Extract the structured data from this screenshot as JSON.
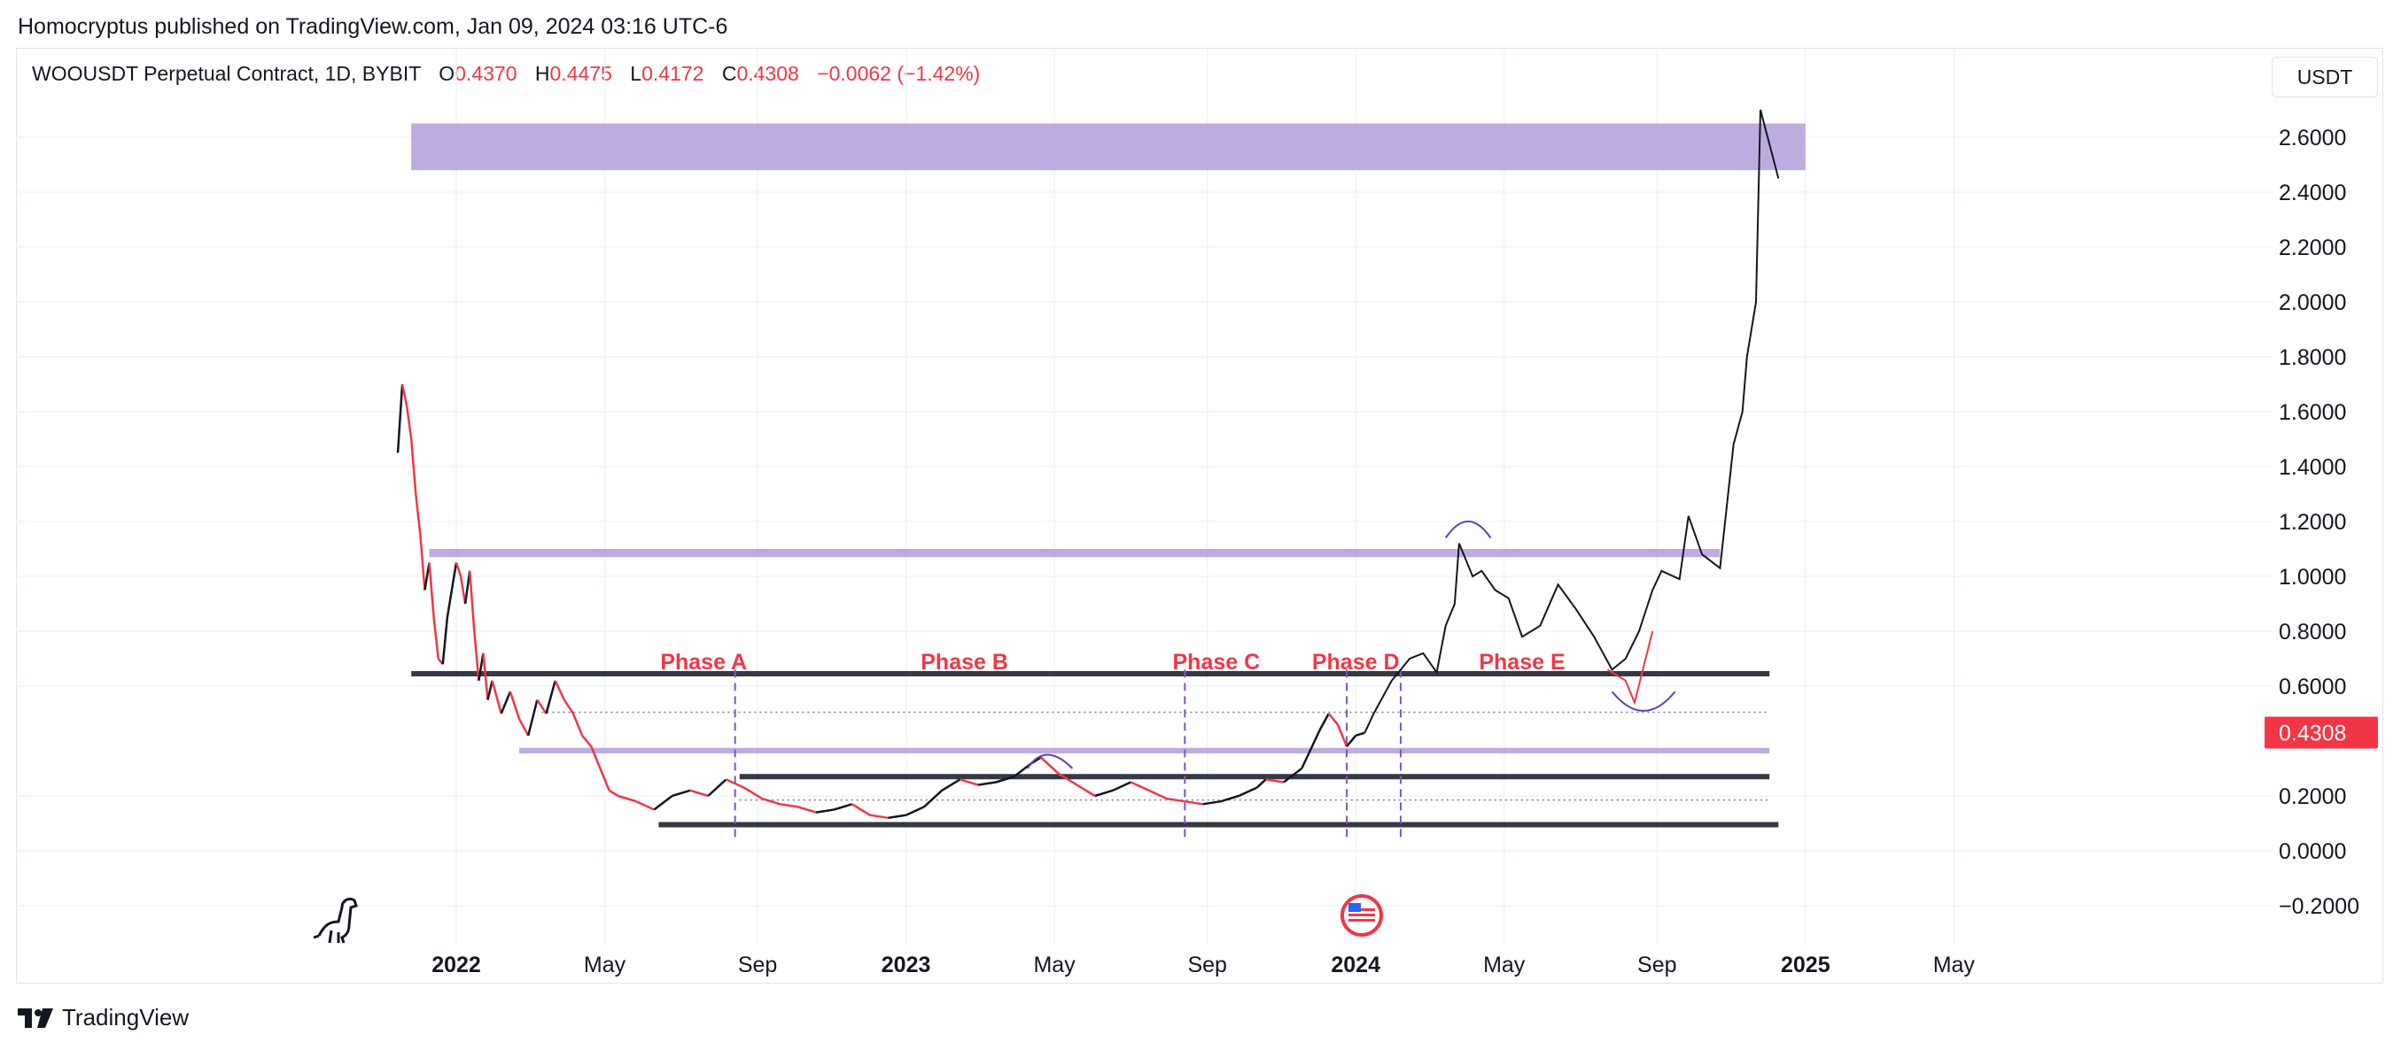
{
  "header": {
    "publish_line": "Homocryptus published on TradingView.com, Jan 09, 2024 03:16 UTC-6"
  },
  "legend": {
    "symbol": "WOOUSDT Perpetual Contract, 1D, BYBIT",
    "open_label": "O",
    "open": "0.4370",
    "high_label": "H",
    "high": "0.4475",
    "low_label": "L",
    "low": "0.4172",
    "close_label": "C",
    "close": "0.4308",
    "change": "−0.0062 (−1.42%)"
  },
  "currency": "USDT",
  "footer": {
    "brand": "TradingView"
  },
  "colors": {
    "down": "#f23645",
    "zone": "#b39ddb",
    "line": "#131722",
    "phase_text": "#f23645",
    "divider": "#7e57c2"
  },
  "chart_data": {
    "type": "line",
    "title": "WOOUSDT Perpetual Contract, 1D, BYBIT",
    "y_ticks": [
      "2.6000",
      "2.4000",
      "2.2000",
      "2.0000",
      "1.8000",
      "1.6000",
      "1.4000",
      "1.2000",
      "1.0000",
      "0.8000",
      "0.6000",
      "0.2000",
      "0.0000",
      "−0.2000"
    ],
    "y_tick_values": [
      2.6,
      2.4,
      2.2,
      2.0,
      1.8,
      1.6,
      1.4,
      1.2,
      1.0,
      0.8,
      0.6,
      0.2,
      0.0,
      -0.2
    ],
    "ylim": [
      -0.36,
      2.95
    ],
    "x_ticks": [
      {
        "label": "2022",
        "t": 2022.0,
        "bold": true
      },
      {
        "label": "May",
        "t": 2022.33,
        "bold": false
      },
      {
        "label": "Sep",
        "t": 2022.67,
        "bold": false
      },
      {
        "label": "2023",
        "t": 2023.0,
        "bold": true
      },
      {
        "label": "May",
        "t": 2023.33,
        "bold": false
      },
      {
        "label": "Sep",
        "t": 2023.67,
        "bold": false
      },
      {
        "label": "2024",
        "t": 2024.0,
        "bold": true
      },
      {
        "label": "May",
        "t": 2024.33,
        "bold": false
      },
      {
        "label": "Sep",
        "t": 2024.67,
        "bold": false
      },
      {
        "label": "2025",
        "t": 2025.0,
        "bold": true
      },
      {
        "label": "May",
        "t": 2025.33,
        "bold": false
      }
    ],
    "xlim": [
      2021.08,
      2026.0
    ],
    "last_price_label": "0.4308",
    "last_price": 0.4308,
    "price_series": [
      [
        2021.87,
        1.45
      ],
      [
        2021.88,
        1.7
      ],
      [
        2021.89,
        1.62
      ],
      [
        2021.9,
        1.5
      ],
      [
        2021.91,
        1.3
      ],
      [
        2021.92,
        1.15
      ],
      [
        2021.93,
        0.95
      ],
      [
        2021.94,
        1.05
      ],
      [
        2021.95,
        0.85
      ],
      [
        2021.96,
        0.7
      ],
      [
        2021.97,
        0.68
      ],
      [
        2021.98,
        0.85
      ],
      [
        2021.99,
        0.95
      ],
      [
        2022.0,
        1.05
      ],
      [
        2022.01,
        1.0
      ],
      [
        2022.02,
        0.9
      ],
      [
        2022.03,
        1.02
      ],
      [
        2022.04,
        0.8
      ],
      [
        2022.05,
        0.62
      ],
      [
        2022.06,
        0.72
      ],
      [
        2022.07,
        0.55
      ],
      [
        2022.08,
        0.62
      ],
      [
        2022.1,
        0.5
      ],
      [
        2022.12,
        0.58
      ],
      [
        2022.14,
        0.48
      ],
      [
        2022.16,
        0.42
      ],
      [
        2022.18,
        0.55
      ],
      [
        2022.2,
        0.5
      ],
      [
        2022.22,
        0.62
      ],
      [
        2022.24,
        0.55
      ],
      [
        2022.26,
        0.5
      ],
      [
        2022.28,
        0.42
      ],
      [
        2022.3,
        0.38
      ],
      [
        2022.32,
        0.3
      ],
      [
        2022.34,
        0.22
      ],
      [
        2022.36,
        0.2
      ],
      [
        2022.4,
        0.18
      ],
      [
        2022.44,
        0.15
      ],
      [
        2022.48,
        0.2
      ],
      [
        2022.52,
        0.22
      ],
      [
        2022.56,
        0.2
      ],
      [
        2022.6,
        0.26
      ],
      [
        2022.64,
        0.23
      ],
      [
        2022.68,
        0.19
      ],
      [
        2022.72,
        0.17
      ],
      [
        2022.76,
        0.16
      ],
      [
        2022.8,
        0.14
      ],
      [
        2022.84,
        0.15
      ],
      [
        2022.88,
        0.17
      ],
      [
        2022.92,
        0.13
      ],
      [
        2022.96,
        0.12
      ],
      [
        2023.0,
        0.13
      ],
      [
        2023.04,
        0.16
      ],
      [
        2023.08,
        0.22
      ],
      [
        2023.12,
        0.26
      ],
      [
        2023.16,
        0.24
      ],
      [
        2023.2,
        0.25
      ],
      [
        2023.24,
        0.27
      ],
      [
        2023.28,
        0.32
      ],
      [
        2023.3,
        0.34
      ],
      [
        2023.34,
        0.28
      ],
      [
        2023.38,
        0.24
      ],
      [
        2023.42,
        0.2
      ],
      [
        2023.46,
        0.22
      ],
      [
        2023.5,
        0.25
      ],
      [
        2023.54,
        0.22
      ],
      [
        2023.58,
        0.19
      ],
      [
        2023.62,
        0.18
      ],
      [
        2023.66,
        0.17
      ],
      [
        2023.7,
        0.18
      ],
      [
        2023.74,
        0.2
      ],
      [
        2023.78,
        0.23
      ],
      [
        2023.8,
        0.26
      ],
      [
        2023.84,
        0.25
      ],
      [
        2023.88,
        0.3
      ],
      [
        2023.92,
        0.44
      ],
      [
        2023.94,
        0.5
      ],
      [
        2023.96,
        0.46
      ],
      [
        2023.98,
        0.38
      ],
      [
        2024.0,
        0.42
      ],
      [
        2024.02,
        0.43
      ]
    ],
    "projection_series": [
      [
        2024.04,
        0.5
      ],
      [
        2024.08,
        0.62
      ],
      [
        2024.12,
        0.7
      ],
      [
        2024.15,
        0.72
      ],
      [
        2024.18,
        0.65
      ],
      [
        2024.2,
        0.82
      ],
      [
        2024.22,
        0.9
      ],
      [
        2024.23,
        1.12
      ],
      [
        2024.26,
        1.0
      ],
      [
        2024.28,
        1.02
      ],
      [
        2024.31,
        0.95
      ],
      [
        2024.34,
        0.92
      ],
      [
        2024.37,
        0.78
      ],
      [
        2024.41,
        0.82
      ],
      [
        2024.45,
        0.97
      ],
      [
        2024.49,
        0.88
      ],
      [
        2024.53,
        0.78
      ],
      [
        2024.57,
        0.66
      ],
      [
        2024.6,
        0.7
      ],
      [
        2024.63,
        0.8
      ],
      [
        2024.66,
        0.95
      ],
      [
        2024.68,
        1.02
      ],
      [
        2024.72,
        0.99
      ],
      [
        2024.74,
        1.22
      ],
      [
        2024.77,
        1.08
      ],
      [
        2024.81,
        1.03
      ],
      [
        2024.84,
        1.48
      ],
      [
        2024.86,
        1.6
      ],
      [
        2024.87,
        1.8
      ],
      [
        2024.89,
        2.0
      ],
      [
        2024.9,
        2.7
      ],
      [
        2024.94,
        2.45
      ]
    ],
    "zones": [
      {
        "t0": 2021.9,
        "t1": 2025.0,
        "y0": 2.48,
        "y1": 2.65
      },
      {
        "t0": 2021.94,
        "t1": 2024.81,
        "y0": 1.07,
        "y1": 1.1
      },
      {
        "t0": 2022.14,
        "t1": 2024.92,
        "y0": 0.355,
        "y1": 0.375
      }
    ],
    "support_lines": [
      {
        "t0": 2021.9,
        "t1": 2024.92,
        "y": 0.645
      },
      {
        "t0": 2022.63,
        "t1": 2024.92,
        "y": 0.27
      },
      {
        "t0": 2022.45,
        "t1": 2024.94,
        "y": 0.095
      }
    ],
    "dotted_lines": [
      {
        "t0": 2022.19,
        "t1": 2024.92,
        "y": 0.505
      },
      {
        "t0": 2022.63,
        "t1": 2024.92,
        "y": 0.185
      }
    ],
    "phase_dividers": [
      2022.62,
      2023.62,
      2023.98,
      2024.1
    ],
    "phases": [
      {
        "label": "Phase A",
        "t": 2022.55,
        "y": 0.69
      },
      {
        "label": "Phase B",
        "t": 2023.13,
        "y": 0.69
      },
      {
        "label": "Phase C",
        "t": 2023.69,
        "y": 0.69
      },
      {
        "label": "Phase D",
        "t": 2024.0,
        "y": 0.69
      },
      {
        "label": "Phase E",
        "t": 2024.37,
        "y": 0.69
      }
    ]
  }
}
